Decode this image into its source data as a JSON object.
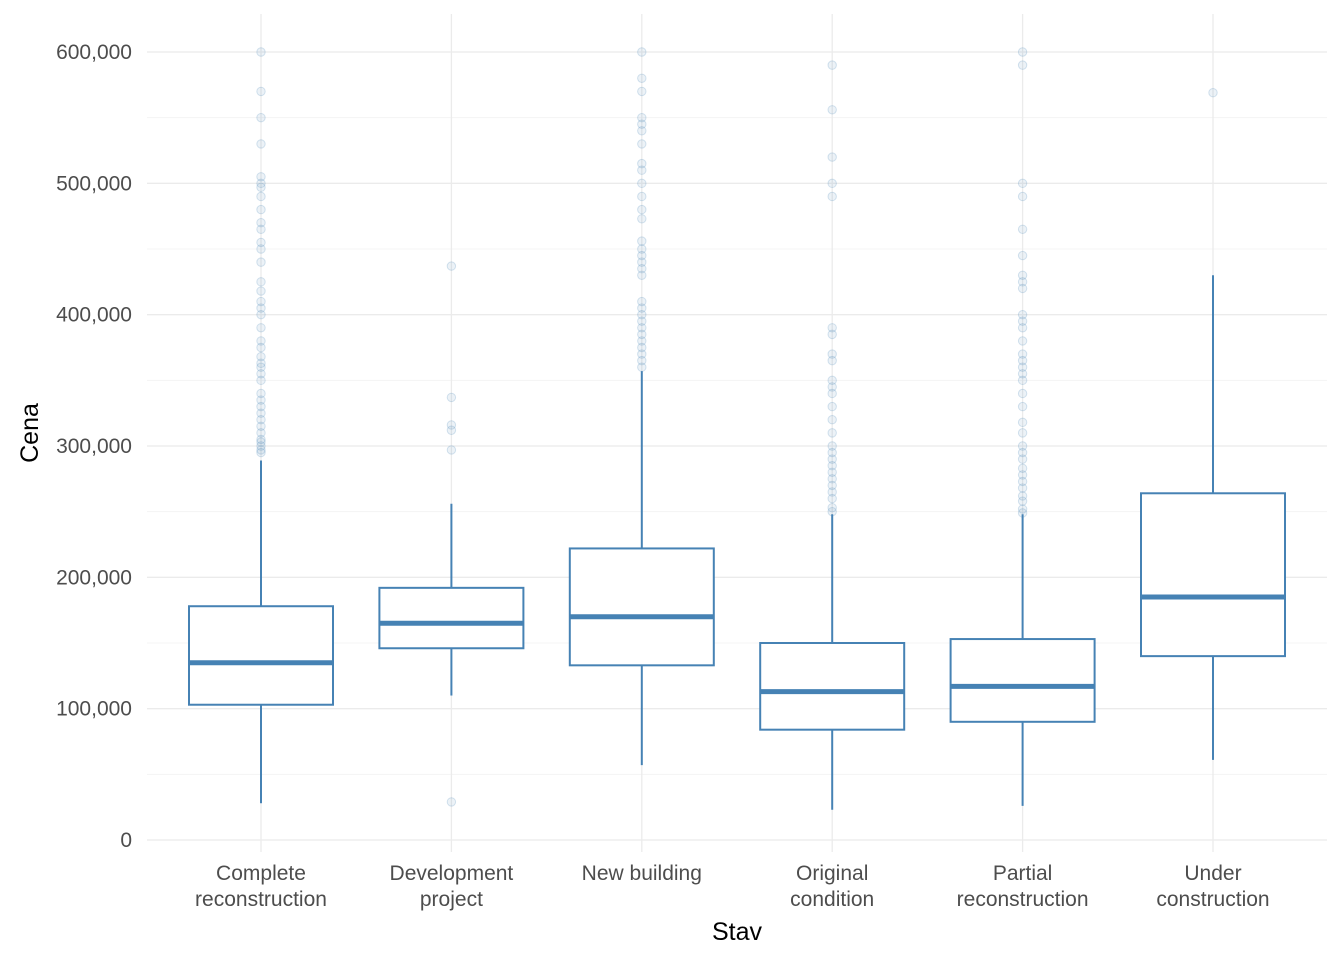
{
  "chart_data": {
    "type": "box",
    "xlabel": "Stav",
    "ylabel": "Cena",
    "ylim": [
      0,
      600000
    ],
    "y_ticks": [
      0,
      100000,
      200000,
      300000,
      400000,
      500000,
      600000
    ],
    "y_tick_labels": [
      "0",
      "100,000",
      "200,000",
      "300,000",
      "400,000",
      "500,000",
      "600,000"
    ],
    "grid": true,
    "color": "#4682b4",
    "categories": [
      [
        "Complete",
        "reconstruction"
      ],
      [
        "Development",
        "project"
      ],
      [
        "New building"
      ],
      [
        "Original",
        "condition"
      ],
      [
        "Partial",
        "reconstruction"
      ],
      [
        "Under",
        "construction"
      ]
    ],
    "boxes": [
      {
        "q1": 103000,
        "median": 135000,
        "q3": 178000,
        "whisker_low": 28000,
        "whisker_high": 289000,
        "outliers": [
          295000,
          297000,
          300000,
          303000,
          305000,
          310000,
          315000,
          320000,
          325000,
          330000,
          335000,
          340000,
          350000,
          355000,
          360000,
          363000,
          368000,
          375000,
          380000,
          390000,
          400000,
          405000,
          410000,
          418000,
          425000,
          440000,
          450000,
          455000,
          465000,
          470000,
          480000,
          490000,
          497000,
          500000,
          505000,
          530000,
          550000,
          570000,
          600000
        ]
      },
      {
        "q1": 146000,
        "median": 165000,
        "q3": 192000,
        "whisker_low": 110000,
        "whisker_high": 256000,
        "outliers": [
          29000,
          297000,
          312000,
          316000,
          337000,
          437000
        ]
      },
      {
        "q1": 133000,
        "median": 170000,
        "q3": 222000,
        "whisker_low": 57000,
        "whisker_high": 357000,
        "outliers": [
          360000,
          365000,
          370000,
          375000,
          380000,
          385000,
          390000,
          395000,
          400000,
          405000,
          410000,
          430000,
          435000,
          440000,
          445000,
          450000,
          456000,
          473000,
          480000,
          490000,
          500000,
          510000,
          515000,
          530000,
          540000,
          545000,
          550000,
          570000,
          580000,
          600000
        ]
      },
      {
        "q1": 84000,
        "median": 113000,
        "q3": 150000,
        "whisker_low": 23000,
        "whisker_high": 248000,
        "outliers": [
          250000,
          253000,
          260000,
          265000,
          270000,
          275000,
          280000,
          285000,
          290000,
          295000,
          300000,
          310000,
          320000,
          330000,
          340000,
          345000,
          350000,
          365000,
          370000,
          385000,
          390000,
          490000,
          500000,
          520000,
          556000,
          590000
        ]
      },
      {
        "q1": 90000,
        "median": 117000,
        "q3": 153000,
        "whisker_low": 26000,
        "whisker_high": 248000,
        "outliers": [
          249000,
          252000,
          258000,
          262000,
          268000,
          273000,
          278000,
          283000,
          290000,
          295000,
          300000,
          310000,
          318000,
          330000,
          340000,
          350000,
          355000,
          360000,
          365000,
          370000,
          380000,
          390000,
          395000,
          400000,
          420000,
          425000,
          430000,
          445000,
          465000,
          490000,
          500000,
          590000,
          600000
        ]
      },
      {
        "q1": 140000,
        "median": 185000,
        "q3": 264000,
        "whisker_low": 61000,
        "whisker_high": 430000,
        "outliers": [
          569000
        ]
      }
    ]
  }
}
